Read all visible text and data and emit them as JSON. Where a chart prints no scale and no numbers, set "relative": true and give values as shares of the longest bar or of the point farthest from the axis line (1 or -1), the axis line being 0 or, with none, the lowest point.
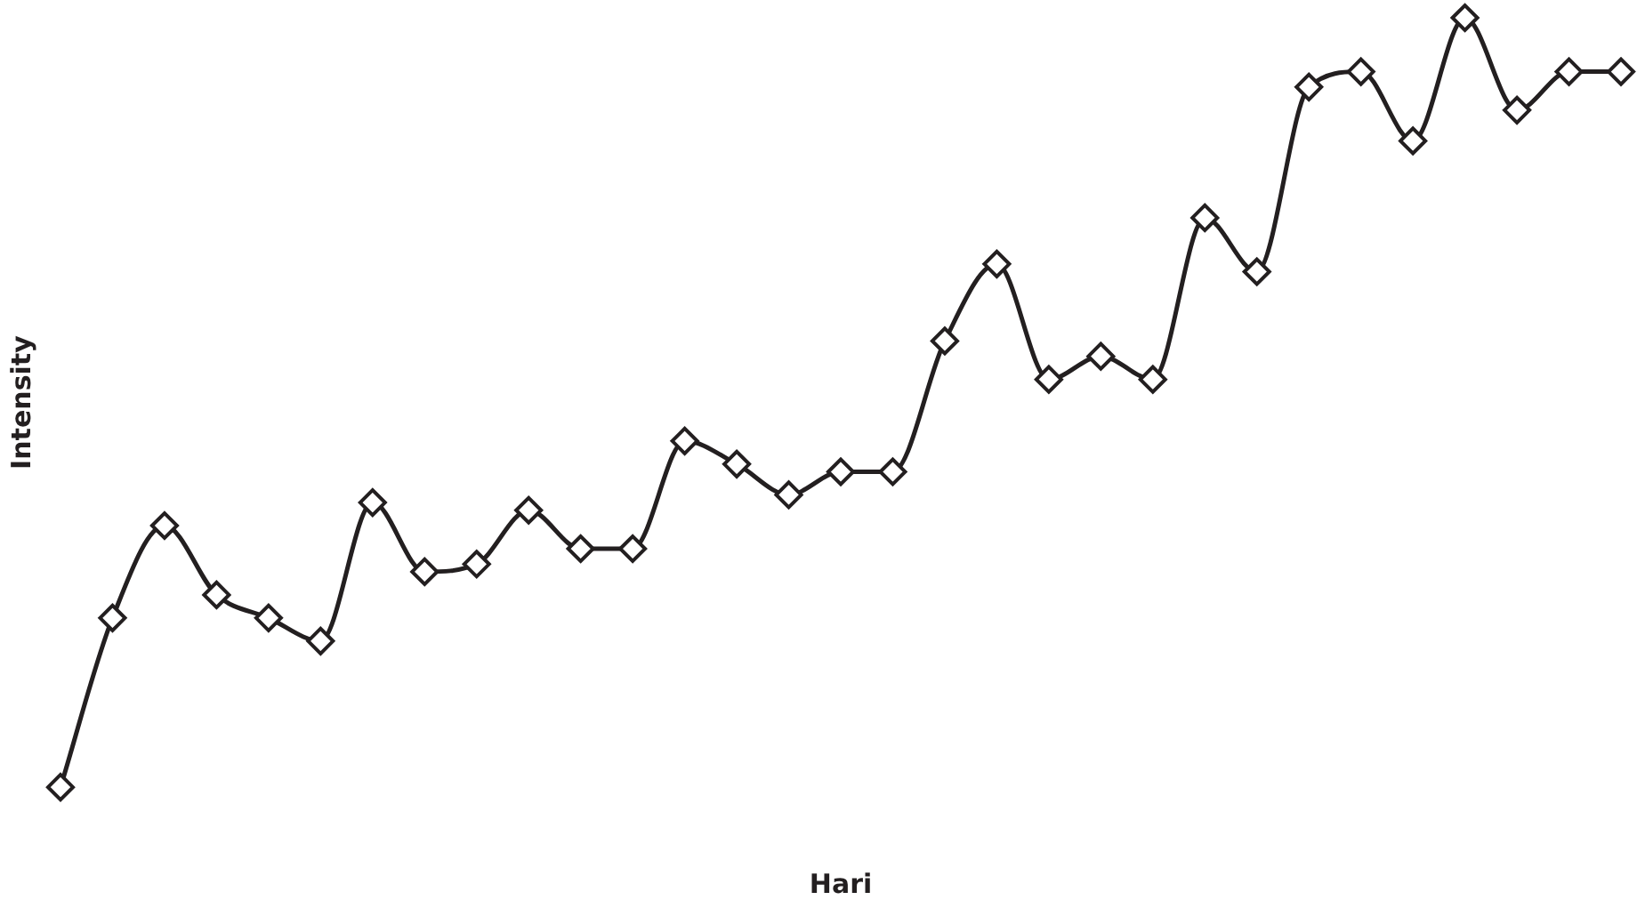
{
  "chart_data": {
    "type": "line",
    "xlabel": "Hari",
    "ylabel": "Intensity",
    "relative": true,
    "marker": "diamond",
    "line_style": "solid",
    "categories": [
      null,
      null,
      null,
      null,
      null,
      null,
      null,
      null,
      null,
      null,
      null,
      null,
      null,
      null,
      null,
      null,
      null,
      null,
      null,
      null,
      null,
      null,
      null,
      null,
      null,
      null,
      null,
      null,
      null,
      null,
      null
    ],
    "series": [
      {
        "color": "#231f20",
        "values": [
          0,
          0.22,
          0.34,
          0.25,
          0.22,
          0.19,
          0.37,
          0.28,
          0.29,
          0.36,
          0.31,
          0.31,
          0.45,
          0.42,
          0.38,
          0.41,
          0.41,
          0.58,
          0.68,
          0.53,
          0.56,
          0.53,
          0.74,
          0.67,
          0.91,
          0.93,
          0.84,
          1,
          0.88,
          0.93,
          0.93
        ]
      }
    ]
  }
}
